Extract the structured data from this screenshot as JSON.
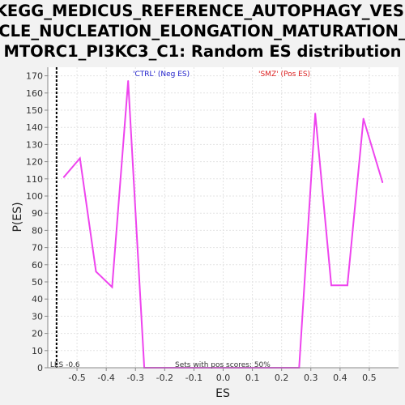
{
  "chart_data": {
    "type": "line",
    "title_lines": [
      "KEGG_MEDICUS_REFERENCE_AUTOPHAGY_VESI",
      "CLE_NUCLEATION_ELONGATION_MATURATION_",
      "MTORC1_PI3KC3_C1: Random ES distribution"
    ],
    "xlabel": "ES",
    "ylabel": "P(ES)",
    "xlim": [
      -0.6,
      0.6
    ],
    "ylim": [
      0,
      175
    ],
    "x_ticks": [
      -0.5,
      -0.4,
      -0.3,
      -0.2,
      -0.1,
      0.0,
      0.1,
      0.2,
      0.3,
      0.4,
      0.5
    ],
    "x_tick_labels": [
      "-0.5",
      "-0.4",
      "-0.3",
      "-0.2",
      "-0.1",
      "0.0",
      "0.1",
      "0.2",
      "0.3",
      "0.4",
      "0.5"
    ],
    "y_ticks": [
      0,
      10,
      20,
      30,
      40,
      50,
      60,
      70,
      80,
      90,
      100,
      110,
      120,
      130,
      140,
      150,
      160,
      170
    ],
    "grid": true,
    "series": [
      {
        "color": "#ee44ee",
        "x": [
          -0.545,
          -0.49,
          -0.435,
          -0.38,
          -0.325,
          -0.27,
          -0.25,
          0.26,
          0.315,
          0.37,
          0.425,
          0.48,
          0.545
        ],
        "y": [
          111,
          122,
          56,
          47,
          167,
          0,
          0,
          0,
          148,
          48,
          48,
          145,
          108
        ]
      }
    ],
    "vline": {
      "x": -0.57,
      "label": "LES -0.6"
    },
    "annotations": {
      "neg": {
        "text": "'CTRL' (Neg ES)",
        "color": "#2222cc"
      },
      "pos": {
        "text": "'SMZ' (Pos ES)",
        "color": "#dd2222"
      },
      "footer": "Sets with pos scores: 50%"
    }
  }
}
